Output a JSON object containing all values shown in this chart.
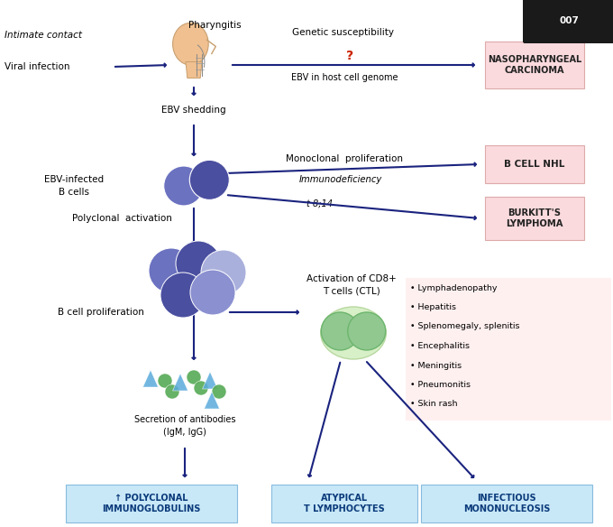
{
  "bg_color": "#ffffff",
  "arrow_color": "#1a237e",
  "pink_box_color": "#fadadd",
  "blue_box_color": "#c8e8f8",
  "fig_width": 6.8,
  "fig_height": 5.84,
  "labels": {
    "intimate_contact": "Intimate contact",
    "viral_infection": "Viral infection",
    "pharyngitis": "Pharyngitis",
    "genetic_susceptibility": "Genetic susceptibility",
    "question_mark": "?",
    "ebv_host": "EBV in host cell genome",
    "nasopharyngeal": "NASOPHARYNGEAL\nCARCINOMA",
    "ebv_shedding": "EBV shedding",
    "ebv_infected": "EBV-infected\nB cells",
    "monoclonal": "Monoclonal  proliferation",
    "immunodeficiency": "Immunodeficiency",
    "t8_14": "t 8;14",
    "b_cell_nhl": "B CELL NHL",
    "polyclonal_activation": "Polyclonal  activation",
    "burkitts": "BURKITT'S\nLYMPHOMA",
    "b_cell_prolif": "B cell proliferation",
    "activation_cd8": "Activation of CD8+\nT cells (CTL)",
    "secretion": "Secretion of antibodies\n(IgM, IgG)",
    "lymphadenopathy": "• Lymphadenopathy",
    "hepatitis": "• Hepatitis",
    "splenomegaly": "• Splenomegaly, splenitis",
    "encephalitis": "• Encephalitis",
    "meningitis": "• Meningitis",
    "pneumonitis": "• Pneumonitis",
    "skin_rash": "• Skin rash",
    "polyclonal_box": "↑ POLYCLONAL\nIMMUNOGLOBULINS",
    "atypical_box": "ATYPICAL\nT LYMPHOCYTES",
    "infectious_box": "INFECTIOUS\nMONONUCLEOSIS"
  },
  "colors": {
    "dark_blue_cell": "#4a4fa0",
    "medium_blue_cell": "#6b72c0",
    "light_purple_cell": "#8a90d0",
    "lighter_purple_cell": "#aab0dc",
    "green_cell": "#6db56d",
    "light_green_cell": "#90c890",
    "green_antibody": "#55aa55",
    "blue_antibody": "#5aabdc",
    "question_color": "#cc2200",
    "face_skin": "#f0c090",
    "face_outline": "#c8a070"
  }
}
